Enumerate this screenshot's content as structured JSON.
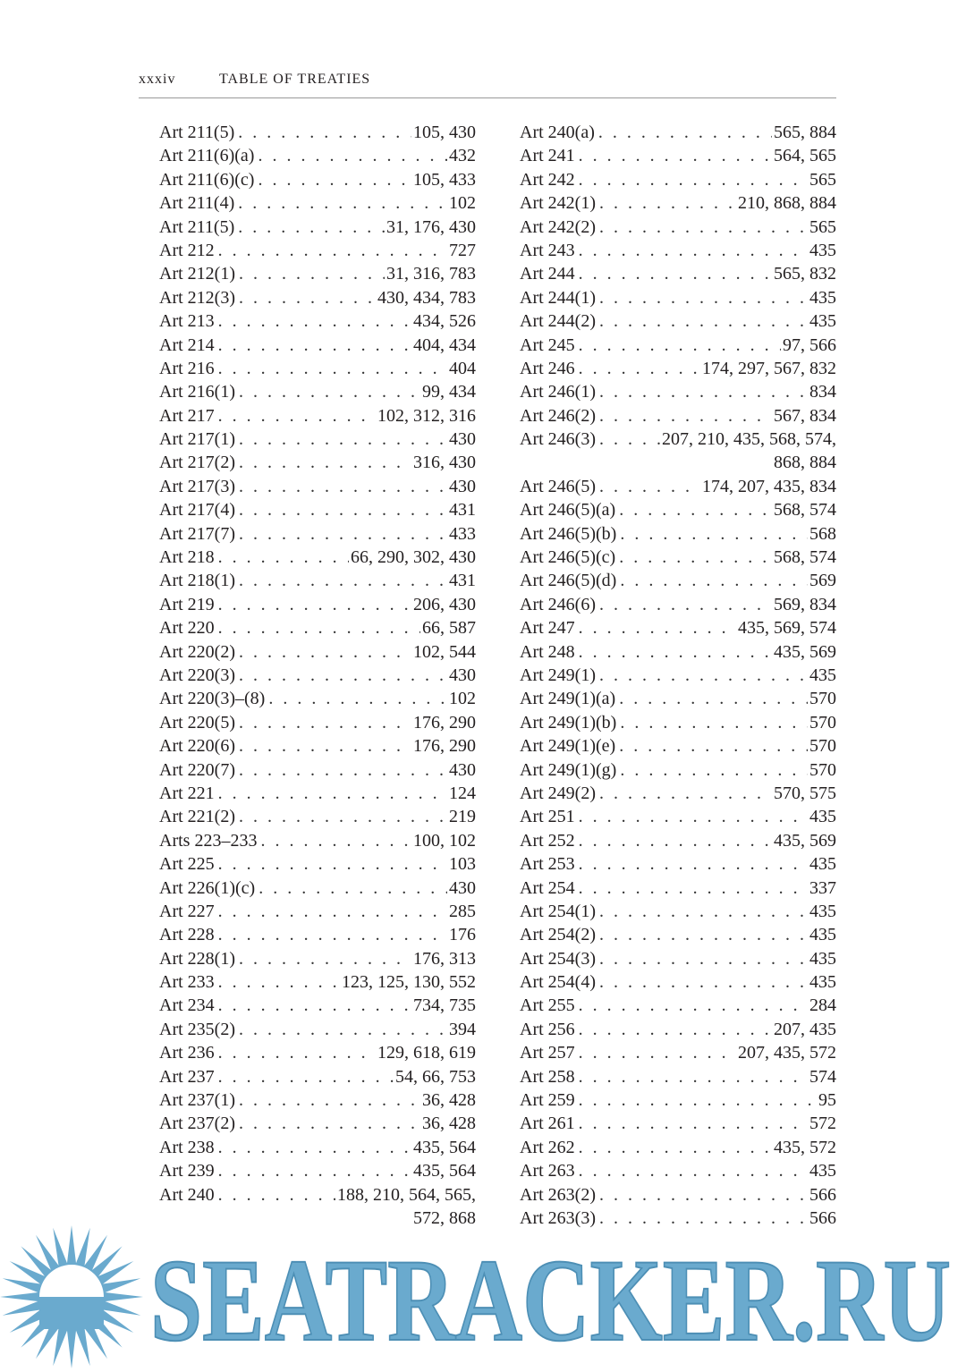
{
  "header": {
    "page_number": "xxxiv",
    "title": "TABLE OF TREATIES"
  },
  "left_column": [
    {
      "label": "Art 211(5)",
      "pages": "105, 430"
    },
    {
      "label": "Art 211(6)(a)",
      "pages": "432"
    },
    {
      "label": "Art 211(6)(c)",
      "pages": "105, 433"
    },
    {
      "label": "Art 211(4)",
      "pages": "102"
    },
    {
      "label": "Art 211(5)",
      "pages": "31, 176, 430"
    },
    {
      "label": "Art 212",
      "pages": "727"
    },
    {
      "label": "Art 212(1)",
      "pages": "31, 316, 783"
    },
    {
      "label": "Art 212(3)",
      "pages": "430, 434, 783"
    },
    {
      "label": "Art 213",
      "pages": "434, 526"
    },
    {
      "label": "Art 214",
      "pages": "404, 434"
    },
    {
      "label": "Art 216",
      "pages": "404"
    },
    {
      "label": "Art 216(1)",
      "pages": "99, 434"
    },
    {
      "label": "Art 217",
      "pages": "102, 312, 316"
    },
    {
      "label": "Art 217(1)",
      "pages": "430"
    },
    {
      "label": "Art 217(2)",
      "pages": "316, 430"
    },
    {
      "label": "Art 217(3)",
      "pages": "430"
    },
    {
      "label": "Art 217(4)",
      "pages": "431"
    },
    {
      "label": "Art 217(7)",
      "pages": "433"
    },
    {
      "label": "Art 218",
      "pages": "66, 290, 302, 430"
    },
    {
      "label": "Art 218(1)",
      "pages": "431"
    },
    {
      "label": "Art 219",
      "pages": "206, 430"
    },
    {
      "label": "Art 220",
      "pages": "66, 587"
    },
    {
      "label": "Art 220(2)",
      "pages": "102, 544"
    },
    {
      "label": "Art 220(3)",
      "pages": "430"
    },
    {
      "label": "Art 220(3)–(8)",
      "pages": "102"
    },
    {
      "label": "Art 220(5)",
      "pages": "176, 290"
    },
    {
      "label": "Art 220(6)",
      "pages": "176, 290"
    },
    {
      "label": "Art 220(7)",
      "pages": "430"
    },
    {
      "label": "Art 221",
      "pages": "124"
    },
    {
      "label": "Art 221(2)",
      "pages": "219"
    },
    {
      "label": "Arts 223–233",
      "pages": "100, 102"
    },
    {
      "label": "Art 225",
      "pages": "103"
    },
    {
      "label": "Art 226(1)(c)",
      "pages": "430"
    },
    {
      "label": "Art 227",
      "pages": "285"
    },
    {
      "label": "Art 228",
      "pages": "176"
    },
    {
      "label": "Art 228(1)",
      "pages": "176, 313"
    },
    {
      "label": "Art 233",
      "pages": "123, 125, 130, 552"
    },
    {
      "label": "Art 234",
      "pages": "734, 735"
    },
    {
      "label": "Art 235(2)",
      "pages": "394"
    },
    {
      "label": "Art 236",
      "pages": "129, 618, 619"
    },
    {
      "label": "Art 237",
      "pages": "54, 66, 753"
    },
    {
      "label": "Art 237(1)",
      "pages": "36, 428"
    },
    {
      "label": "Art 237(2)",
      "pages": "36, 428"
    },
    {
      "label": "Art 238",
      "pages": "435, 564"
    },
    {
      "label": "Art 239",
      "pages": "435, 564"
    },
    {
      "label": "Art 240",
      "pages": "188, 210, 564, 565,"
    },
    {
      "label": "",
      "pages": "572, 868"
    }
  ],
  "right_column": [
    {
      "label": "Art 240(a)",
      "pages": "565, 884"
    },
    {
      "label": "Art 241",
      "pages": "564, 565"
    },
    {
      "label": "Art 242",
      "pages": "565"
    },
    {
      "label": "Art 242(1)",
      "pages": "210, 868, 884"
    },
    {
      "label": "Art 242(2)",
      "pages": "565"
    },
    {
      "label": "Art 243",
      "pages": "435"
    },
    {
      "label": "Art 244",
      "pages": "565, 832"
    },
    {
      "label": "Art 244(1)",
      "pages": "435"
    },
    {
      "label": "Art 244(2)",
      "pages": "435"
    },
    {
      "label": "Art 245",
      "pages": "97, 566"
    },
    {
      "label": "Art 246",
      "pages": "174, 297, 567, 832"
    },
    {
      "label": "Art 246(1)",
      "pages": "834"
    },
    {
      "label": "Art 246(2)",
      "pages": "567, 834"
    },
    {
      "label": "Art 246(3)",
      "pages": "207, 210, 435, 568, 574,"
    },
    {
      "label": "",
      "pages": "868, 884"
    },
    {
      "label": "Art 246(5)",
      "pages": "174, 207, 435, 834"
    },
    {
      "label": "Art 246(5)(a)",
      "pages": "568, 574"
    },
    {
      "label": "Art 246(5)(b)",
      "pages": "568"
    },
    {
      "label": "Art 246(5)(c)",
      "pages": "568, 574"
    },
    {
      "label": "Art 246(5)(d)",
      "pages": "569"
    },
    {
      "label": "Art 246(6)",
      "pages": "569, 834"
    },
    {
      "label": "Art 247",
      "pages": "435, 569, 574"
    },
    {
      "label": "Art 248",
      "pages": "435, 569"
    },
    {
      "label": "Art 249(1)",
      "pages": "435"
    },
    {
      "label": "Art 249(1)(a)",
      "pages": "570"
    },
    {
      "label": "Art 249(1)(b)",
      "pages": "570"
    },
    {
      "label": "Art 249(1)(e)",
      "pages": "570"
    },
    {
      "label": "Art 249(1)(g)",
      "pages": "570"
    },
    {
      "label": "Art 249(2)",
      "pages": "570, 575"
    },
    {
      "label": "Art 251",
      "pages": "435"
    },
    {
      "label": "Art 252",
      "pages": "435, 569"
    },
    {
      "label": "Art 253",
      "pages": "435"
    },
    {
      "label": "Art 254",
      "pages": "337"
    },
    {
      "label": "Art 254(1)",
      "pages": "435"
    },
    {
      "label": "Art 254(2)",
      "pages": "435"
    },
    {
      "label": "Art 254(3)",
      "pages": "435"
    },
    {
      "label": "Art 254(4)",
      "pages": "435"
    },
    {
      "label": "Art 255",
      "pages": "284"
    },
    {
      "label": "Art 256",
      "pages": "207, 435"
    },
    {
      "label": "Art 257",
      "pages": "207, 435, 572"
    },
    {
      "label": "Art 258",
      "pages": "574"
    },
    {
      "label": "Art 259",
      "pages": "95"
    },
    {
      "label": "Art 261",
      "pages": "572"
    },
    {
      "label": "Art 262",
      "pages": "435, 572"
    },
    {
      "label": "Art 263",
      "pages": "435"
    },
    {
      "label": "Art 263(2)",
      "pages": "566"
    },
    {
      "label": "Art 263(3)",
      "pages": "566"
    }
  ],
  "watermark": {
    "text": "SEATRACKER.RU",
    "color": "#6aaace"
  }
}
